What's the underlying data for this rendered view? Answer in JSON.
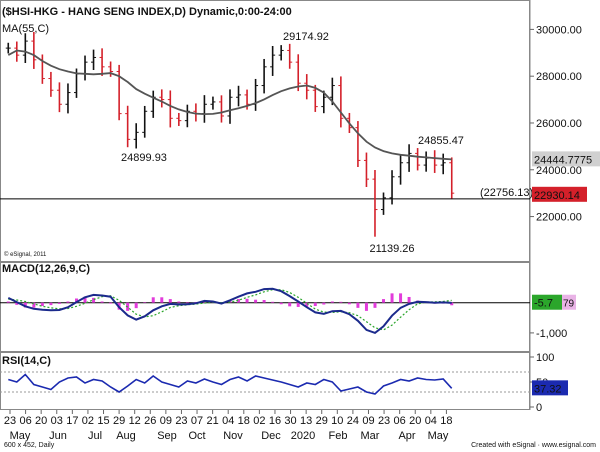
{
  "chart_data": [
    {
      "type": "candlestick",
      "title": "($HSI-HKG - HANG SENG INDEX,D) Dynamic,0:00-24:00",
      "overlay_label": "MA(55,C)",
      "ylim": [
        20400,
        31000
      ],
      "y_ticks": [
        "30000.00",
        "28000.00",
        "26000.00",
        "24000.00",
        "22000.00"
      ],
      "y_tick_values": [
        30000,
        28000,
        26000,
        24000,
        22000
      ],
      "annotations": [
        {
          "text": "29174.92",
          "value": 29174.92
        },
        {
          "text": "24899.93",
          "value": 24899.93
        },
        {
          "text": "24855.47",
          "value": 24855.47
        },
        {
          "text": "(22756.13)",
          "value": 22756.13
        },
        {
          "text": "21139.26",
          "value": 21139.26
        }
      ],
      "horizontal_line": 22756.13,
      "last_close_label": "22930.14",
      "ma_value_label": "24444.7775",
      "watermark": "© eSignal, 2011",
      "closes": [
        29200,
        28900,
        29500,
        28700,
        27900,
        27400,
        26800,
        27300,
        28100,
        28600,
        28800,
        28400,
        28200,
        26400,
        25300,
        25600,
        26500,
        27100,
        27000,
        26200,
        26100,
        26500,
        26400,
        26800,
        26900,
        26300,
        27100,
        27200,
        26800,
        27600,
        28400,
        28900,
        29100,
        28600,
        27700,
        27400,
        26700,
        27100,
        27600,
        26200,
        25800,
        24400,
        23600,
        22300,
        22800,
        23700,
        24300,
        24700,
        24200,
        24500,
        24200,
        24300,
        23000
      ],
      "ma": [
        28900,
        29100,
        29050,
        28900,
        28650,
        28450,
        28300,
        28200,
        28120,
        28100,
        28080,
        28100,
        28130,
        28000,
        27750,
        27450,
        27250,
        27080,
        26920,
        26730,
        26580,
        26470,
        26400,
        26380,
        26390,
        26450,
        26540,
        26630,
        26730,
        26850,
        27010,
        27190,
        27360,
        27480,
        27560,
        27600,
        27500,
        27300,
        26920,
        26450,
        25980,
        25560,
        25200,
        24950,
        24800,
        24700,
        24640,
        24600,
        24560,
        24530,
        24500,
        24470,
        24445
      ],
      "low_index": 43,
      "low_value": 21139.26
    },
    {
      "type": "line",
      "title": "MACD(12,26,9,C)",
      "ylim": [
        -1500,
        1150
      ],
      "y_ticks": [
        "-1,000"
      ],
      "y_tick_values": [
        -1000
      ],
      "zero_line": 0,
      "last_macd_label": "-5.7",
      "last_signal_label": "79",
      "macd": [
        160,
        20,
        -120,
        -200,
        -230,
        -250,
        -240,
        -150,
        20,
        180,
        260,
        240,
        200,
        -150,
        -420,
        -560,
        -450,
        -250,
        -120,
        -40,
        -60,
        -50,
        -20,
        60,
        40,
        -30,
        80,
        200,
        310,
        360,
        450,
        460,
        380,
        220,
        40,
        -150,
        -320,
        -370,
        -280,
        -270,
        -380,
        -600,
        -900,
        -1000,
        -780,
        -430,
        -170,
        -40,
        30,
        20,
        0,
        10,
        -6
      ],
      "signal": [
        120,
        90,
        40,
        -40,
        -120,
        -170,
        -200,
        -190,
        -120,
        -20,
        100,
        200,
        230,
        80,
        -150,
        -380,
        -470,
        -430,
        -300,
        -160,
        -100,
        -70,
        -45,
        -10,
        10,
        0,
        20,
        80,
        180,
        260,
        360,
        430,
        430,
        340,
        180,
        -20,
        -210,
        -310,
        -320,
        -300,
        -330,
        -430,
        -630,
        -830,
        -900,
        -740,
        -480,
        -230,
        -40,
        20,
        30,
        40,
        79
      ]
    },
    {
      "type": "line",
      "title": "RSI(14,C)",
      "ylim": [
        0,
        100
      ],
      "y_ticks": [
        "100",
        "50",
        "0"
      ],
      "y_tick_values": [
        100,
        50,
        0
      ],
      "ref_lines": [
        70,
        30
      ],
      "last_value_label": "37.32",
      "values": [
        55,
        50,
        65,
        45,
        40,
        35,
        50,
        58,
        60,
        48,
        55,
        52,
        40,
        30,
        42,
        55,
        48,
        62,
        50,
        45,
        40,
        52,
        48,
        56,
        50,
        45,
        55,
        60,
        52,
        62,
        58,
        54,
        50,
        45,
        40,
        48,
        45,
        55,
        50,
        32,
        36,
        40,
        30,
        26,
        42,
        48,
        55,
        52,
        58,
        55,
        54,
        56,
        37.32
      ]
    }
  ],
  "x_axis": {
    "day_ticks": [
      "23",
      "06",
      "20",
      "03",
      "17",
      "02",
      "15",
      "29",
      "12",
      "26",
      "09",
      "23",
      "07",
      "21",
      "04",
      "18",
      "02",
      "16",
      "30",
      "13",
      "29",
      "10",
      "24",
      "09",
      "23",
      "06",
      "20",
      "04",
      "18"
    ],
    "month_labels": [
      "May",
      "Jun",
      "Jul",
      "Aug",
      "Sep",
      "Oct",
      "Nov",
      "Dec",
      "2020",
      "Feb",
      "Mar",
      "Apr",
      "May"
    ]
  },
  "footer": {
    "left": "600 x 452, Daily",
    "right": "Created with eSignal  ·  www.esignal.com"
  },
  "colors": {
    "candle_up": "#111111",
    "candle_down": "#d4202a",
    "ma_line": "#555555",
    "macd_line": "#1b2a8c",
    "signal_line": "#2ba62b",
    "histogram": "#e23cdb",
    "rsi_line": "#1b2ab0",
    "last_price_box": "#d4202a",
    "macd_box": "#2ba62b",
    "rsi_box": "#1b2ab0"
  }
}
